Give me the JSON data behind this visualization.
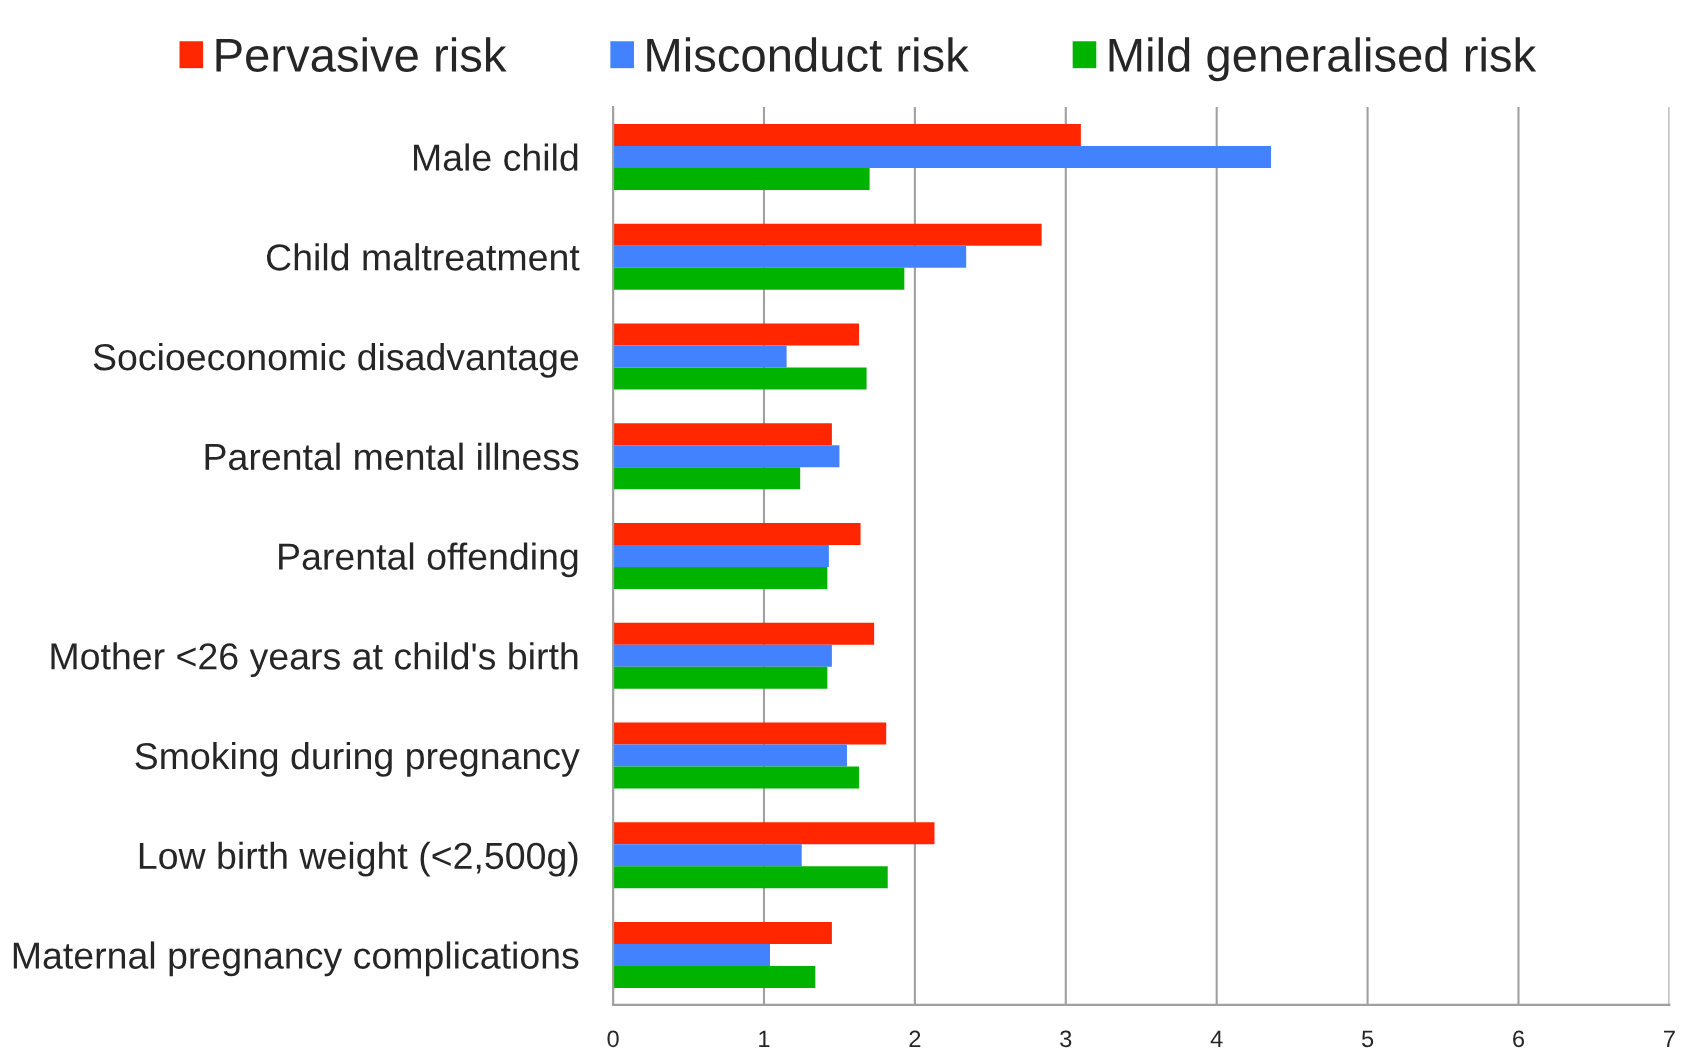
{
  "chart_data": {
    "type": "bar",
    "orientation": "horizontal",
    "categories": [
      "Male child",
      "Child maltreatment",
      "Socioeconomic disadvantage",
      "Parental mental illness",
      "Parental offending",
      "Mother <26 years at child's birth",
      "Smoking during pregnancy",
      "Low birth weight (<2,500g)",
      "Maternal pregnancy complications"
    ],
    "series": [
      {
        "name": "Pervasive risk",
        "color": "#ff2600",
        "values": [
          3.1,
          2.84,
          1.63,
          1.45,
          1.64,
          1.73,
          1.81,
          2.13,
          1.45
        ]
      },
      {
        "name": "Misconduct risk",
        "color": "#4282ff",
        "values": [
          4.36,
          2.34,
          1.15,
          1.5,
          1.43,
          1.45,
          1.55,
          1.25,
          1.04
        ]
      },
      {
        "name": "Mild generalised risk",
        "color": "#00b300",
        "values": [
          1.7,
          1.93,
          1.68,
          1.24,
          1.42,
          1.42,
          1.63,
          1.82,
          1.34
        ]
      }
    ],
    "xlim": [
      0,
      7
    ],
    "xticks": [
      0,
      1,
      2,
      3,
      4,
      5,
      6,
      7
    ],
    "grid": "x",
    "legend": "top"
  }
}
